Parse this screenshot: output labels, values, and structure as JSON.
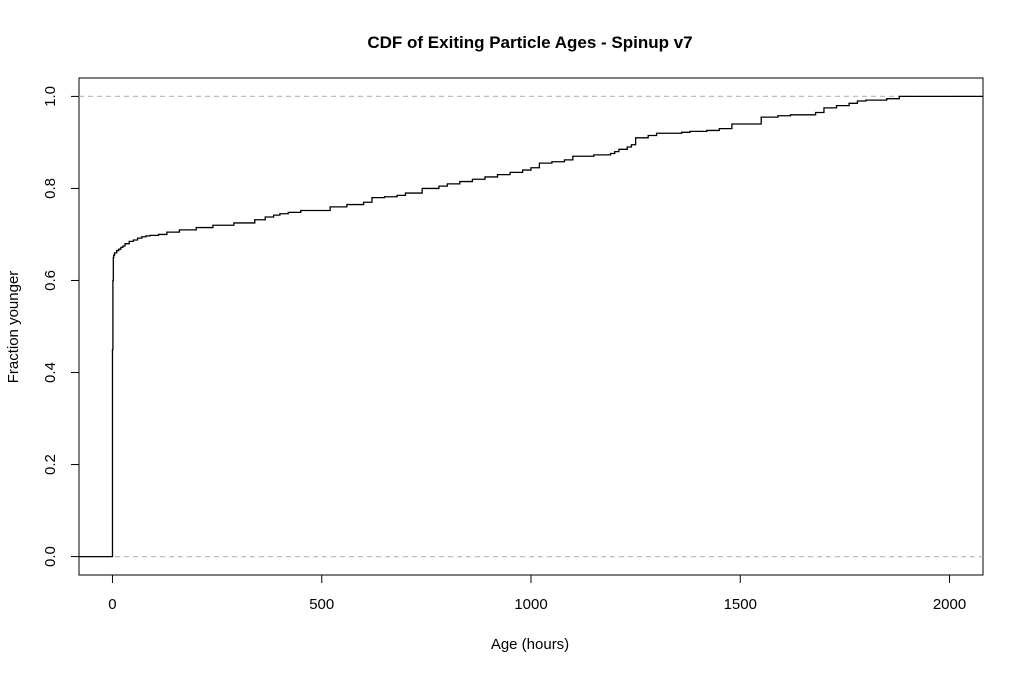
{
  "chart_data": {
    "type": "line",
    "title": "CDF of Exiting Particle Ages - Spinup v7",
    "xlabel": "Age (hours)",
    "ylabel": "Fraction younger",
    "xlim": [
      -80,
      2080
    ],
    "ylim": [
      -0.04,
      1.04
    ],
    "x_ticks": [
      0,
      500,
      1000,
      1500,
      2000
    ],
    "x_tick_labels": [
      "0",
      "500",
      "1000",
      "1500",
      "2000"
    ],
    "y_ticks": [
      0.0,
      0.2,
      0.4,
      0.6,
      0.8,
      1.0
    ],
    "y_tick_labels": [
      "0.0",
      "0.2",
      "0.4",
      "0.6",
      "0.8",
      "1.0"
    ],
    "reference_lines": [
      0,
      1
    ],
    "grid": false,
    "series": [
      {
        "step": true,
        "x": [
          -80,
          0,
          0,
          0,
          1,
          2,
          3,
          5,
          10,
          15,
          20,
          25,
          30,
          40,
          50,
          60,
          70,
          80,
          90,
          110,
          130,
          160,
          200,
          240,
          290,
          340,
          365,
          385,
          400,
          420,
          450,
          520,
          560,
          600,
          620,
          650,
          680,
          700,
          740,
          780,
          800,
          830,
          860,
          890,
          920,
          950,
          980,
          1000,
          1020,
          1050,
          1080,
          1100,
          1150,
          1190,
          1200,
          1210,
          1230,
          1240,
          1250,
          1280,
          1300,
          1360,
          1380,
          1420,
          1450,
          1480,
          1550,
          1590,
          1620,
          1680,
          1700,
          1730,
          1760,
          1780,
          1800,
          1850,
          1880,
          2080
        ],
        "y": [
          0.0,
          0.0,
          0.04,
          0.45,
          0.6,
          0.65,
          0.655,
          0.66,
          0.665,
          0.668,
          0.672,
          0.675,
          0.68,
          0.685,
          0.688,
          0.692,
          0.695,
          0.697,
          0.698,
          0.7,
          0.705,
          0.71,
          0.715,
          0.72,
          0.725,
          0.732,
          0.738,
          0.742,
          0.745,
          0.748,
          0.752,
          0.76,
          0.765,
          0.77,
          0.78,
          0.782,
          0.785,
          0.79,
          0.8,
          0.805,
          0.81,
          0.815,
          0.82,
          0.825,
          0.83,
          0.835,
          0.84,
          0.845,
          0.855,
          0.858,
          0.862,
          0.87,
          0.873,
          0.876,
          0.88,
          0.885,
          0.89,
          0.895,
          0.91,
          0.915,
          0.92,
          0.922,
          0.924,
          0.926,
          0.93,
          0.94,
          0.955,
          0.958,
          0.96,
          0.965,
          0.975,
          0.98,
          0.985,
          0.99,
          0.992,
          0.995,
          1.0,
          1.0
        ]
      }
    ]
  }
}
